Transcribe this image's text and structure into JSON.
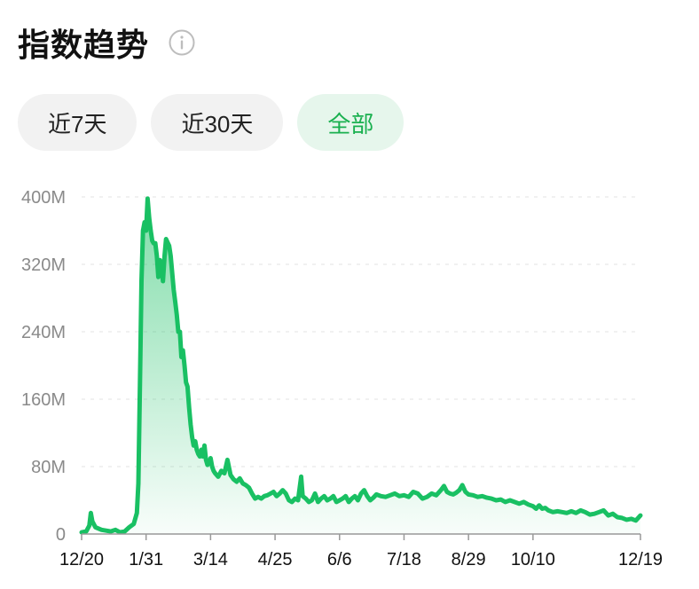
{
  "header": {
    "title": "指数趋势",
    "info_icon": "info-icon"
  },
  "tabs": [
    {
      "label": "近7天",
      "active": false
    },
    {
      "label": "近30天",
      "active": false
    },
    {
      "label": "全部",
      "active": true
    }
  ],
  "colors": {
    "accent": "#19c063",
    "active_tab_bg": "#e6f6ec",
    "active_tab_text": "#19b04f",
    "tab_bg": "#f2f2f2",
    "grid": "#e3e3e3"
  },
  "chart_data": {
    "type": "area",
    "title": "",
    "xlabel": "",
    "ylabel": "",
    "x_tick_labels": [
      "12/20",
      "1/31",
      "3/14",
      "4/25",
      "6/6",
      "7/18",
      "8/29",
      "10/10",
      "12/19"
    ],
    "y_tick_labels": [
      "0",
      "80M",
      "160M",
      "240M",
      "320M",
      "400M"
    ],
    "y_ticks": [
      0,
      80,
      160,
      240,
      320,
      400
    ],
    "y_unit": "M",
    "ylim": [
      0,
      400
    ],
    "x_range": [
      "12/20",
      "12/19"
    ],
    "grid": "horizontal dashed",
    "series": [
      {
        "points": [
          [
            "12/20",
            2
          ],
          [
            "12/23",
            3
          ],
          [
            "12/25",
            10
          ],
          [
            "12/26",
            25
          ],
          [
            "12/27",
            15
          ],
          [
            "12/29",
            8
          ],
          [
            "1/2",
            5
          ],
          [
            "1/5",
            4
          ],
          [
            "1/8",
            3
          ],
          [
            "1/11",
            5
          ],
          [
            "1/14",
            2
          ],
          [
            "1/17",
            3
          ],
          [
            "1/20",
            8
          ],
          [
            "1/23",
            12
          ],
          [
            "1/25",
            25
          ],
          [
            "1/26",
            60
          ],
          [
            "1/27",
            180
          ],
          [
            "1/28",
            300
          ],
          [
            "1/29",
            360
          ],
          [
            "1/30",
            370
          ],
          [
            "1/31",
            360
          ],
          [
            "2/1",
            398
          ],
          [
            "2/2",
            375
          ],
          [
            "2/3",
            360
          ],
          [
            "2/4",
            348
          ],
          [
            "2/5",
            345
          ],
          [
            "2/6",
            345
          ],
          [
            "2/7",
            330
          ],
          [
            "2/8",
            305
          ],
          [
            "2/9",
            325
          ],
          [
            "2/10",
            320
          ],
          [
            "2/11",
            300
          ],
          [
            "2/12",
            330
          ],
          [
            "2/13",
            350
          ],
          [
            "2/14",
            346
          ],
          [
            "2/15",
            342
          ],
          [
            "2/16",
            330
          ],
          [
            "2/17",
            310
          ],
          [
            "2/18",
            290
          ],
          [
            "2/19",
            275
          ],
          [
            "2/20",
            260
          ],
          [
            "2/21",
            240
          ],
          [
            "2/22",
            240
          ],
          [
            "2/23",
            210
          ],
          [
            "2/24",
            218
          ],
          [
            "2/25",
            200
          ],
          [
            "2/26",
            180
          ],
          [
            "2/27",
            175
          ],
          [
            "2/28",
            150
          ],
          [
            "3/1",
            130
          ],
          [
            "3/2",
            115
          ],
          [
            "3/3",
            105
          ],
          [
            "3/4",
            110
          ],
          [
            "3/5",
            100
          ],
          [
            "3/6",
            95
          ],
          [
            "3/7",
            92
          ],
          [
            "3/8",
            100
          ],
          [
            "3/9",
            92
          ],
          [
            "3/10",
            105
          ],
          [
            "3/11",
            88
          ],
          [
            "3/12",
            82
          ],
          [
            "3/13",
            85
          ],
          [
            "3/14",
            90
          ],
          [
            "3/15",
            80
          ],
          [
            "3/16",
            75
          ],
          [
            "3/17",
            72
          ],
          [
            "3/19",
            68
          ],
          [
            "3/21",
            75
          ],
          [
            "3/23",
            72
          ],
          [
            "3/25",
            88
          ],
          [
            "3/27",
            70
          ],
          [
            "3/29",
            65
          ],
          [
            "3/31",
            62
          ],
          [
            "4/2",
            66
          ],
          [
            "4/4",
            60
          ],
          [
            "4/6",
            58
          ],
          [
            "4/8",
            55
          ],
          [
            "4/10",
            48
          ],
          [
            "4/12",
            42
          ],
          [
            "4/14",
            44
          ],
          [
            "4/16",
            42
          ],
          [
            "4/18",
            45
          ],
          [
            "4/20",
            46
          ],
          [
            "4/22",
            48
          ],
          [
            "4/24",
            50
          ],
          [
            "4/26",
            45
          ],
          [
            "4/28",
            48
          ],
          [
            "4/30",
            52
          ],
          [
            "5/2",
            48
          ],
          [
            "5/4",
            40
          ],
          [
            "5/6",
            38
          ],
          [
            "5/8",
            42
          ],
          [
            "5/10",
            40
          ],
          [
            "5/12",
            68
          ],
          [
            "5/13",
            45
          ],
          [
            "5/15",
            42
          ],
          [
            "5/17",
            38
          ],
          [
            "5/19",
            40
          ],
          [
            "5/21",
            48
          ],
          [
            "5/23",
            38
          ],
          [
            "5/25",
            42
          ],
          [
            "5/27",
            45
          ],
          [
            "5/29",
            40
          ],
          [
            "5/31",
            42
          ],
          [
            "6/2",
            45
          ],
          [
            "6/4",
            38
          ],
          [
            "6/6",
            40
          ],
          [
            "6/8",
            42
          ],
          [
            "6/10",
            45
          ],
          [
            "6/12",
            38
          ],
          [
            "6/14",
            42
          ],
          [
            "6/16",
            45
          ],
          [
            "6/18",
            40
          ],
          [
            "6/20",
            48
          ],
          [
            "6/22",
            52
          ],
          [
            "6/24",
            45
          ],
          [
            "6/26",
            40
          ],
          [
            "6/28",
            43
          ],
          [
            "6/30",
            47
          ],
          [
            "7/3",
            45
          ],
          [
            "7/6",
            44
          ],
          [
            "7/9",
            46
          ],
          [
            "7/12",
            48
          ],
          [
            "7/15",
            45
          ],
          [
            "7/18",
            46
          ],
          [
            "7/21",
            44
          ],
          [
            "7/24",
            50
          ],
          [
            "7/27",
            48
          ],
          [
            "7/30",
            42
          ],
          [
            "8/2",
            44
          ],
          [
            "8/5",
            48
          ],
          [
            "8/8",
            46
          ],
          [
            "8/11",
            52
          ],
          [
            "8/13",
            57
          ],
          [
            "8/15",
            50
          ],
          [
            "8/17",
            48
          ],
          [
            "8/19",
            47
          ],
          [
            "8/21",
            49
          ],
          [
            "8/23",
            52
          ],
          [
            "8/25",
            58
          ],
          [
            "8/27",
            50
          ],
          [
            "8/29",
            47
          ],
          [
            "9/1",
            46
          ],
          [
            "9/4",
            44
          ],
          [
            "9/7",
            45
          ],
          [
            "9/10",
            43
          ],
          [
            "9/13",
            42
          ],
          [
            "9/16",
            40
          ],
          [
            "9/19",
            41
          ],
          [
            "9/22",
            38
          ],
          [
            "9/25",
            40
          ],
          [
            "9/28",
            38
          ],
          [
            "10/1",
            36
          ],
          [
            "10/4",
            38
          ],
          [
            "10/7",
            35
          ],
          [
            "10/10",
            33
          ],
          [
            "10/12",
            30
          ],
          [
            "10/14",
            34
          ],
          [
            "10/16",
            30
          ],
          [
            "10/18",
            31
          ],
          [
            "10/20",
            28
          ],
          [
            "10/23",
            26
          ],
          [
            "10/26",
            27
          ],
          [
            "10/29",
            26
          ],
          [
            "11/1",
            25
          ],
          [
            "11/4",
            27
          ],
          [
            "11/7",
            25
          ],
          [
            "11/10",
            28
          ],
          [
            "11/13",
            26
          ],
          [
            "11/16",
            23
          ],
          [
            "11/19",
            24
          ],
          [
            "11/22",
            26
          ],
          [
            "11/25",
            28
          ],
          [
            "11/28",
            22
          ],
          [
            "12/1",
            24
          ],
          [
            "12/4",
            20
          ],
          [
            "12/7",
            19
          ],
          [
            "12/10",
            17
          ],
          [
            "12/13",
            18
          ],
          [
            "12/16",
            16
          ],
          [
            "12/19",
            22
          ]
        ]
      }
    ]
  }
}
